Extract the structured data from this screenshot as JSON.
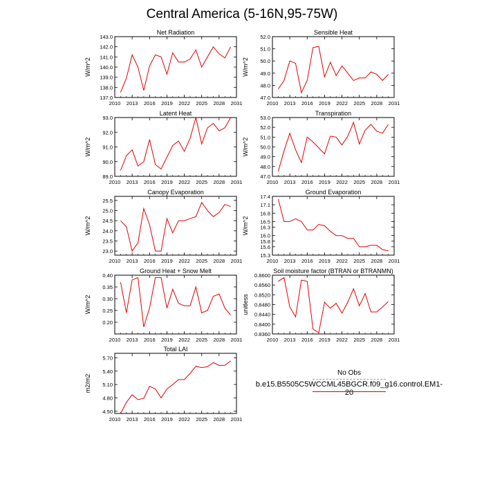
{
  "title": "Central America (5-16N,95-75W)",
  "legend": {
    "obs_label": "No Obs",
    "model_label": "b.e15.B5505C5WCCML45BGCR.f09_g16.control.EM1-20",
    "obs_color": "#9999aa",
    "model_color": "#e00000"
  },
  "chart_data": [
    {
      "type": "line",
      "title": "Net Radiation",
      "ylabel": "W/m^2",
      "xlim": [
        2010,
        2031
      ],
      "ylim": [
        137.0,
        143.0
      ],
      "x_ticks": [
        "2010",
        "2013",
        "2016",
        "2019",
        "2022",
        "2025",
        "2028",
        "2031"
      ],
      "y_ticks": [
        "137.0",
        "138.0",
        "139.0",
        "140.0",
        "141.0",
        "142.0",
        "143.0"
      ],
      "x": [
        2011,
        2012,
        2013,
        2014,
        2015,
        2016,
        2017,
        2018,
        2019,
        2020,
        2021,
        2022,
        2023,
        2024,
        2025,
        2026,
        2027,
        2028,
        2029,
        2030
      ],
      "values": [
        137.5,
        138.9,
        141.2,
        140.0,
        137.7,
        140.1,
        141.2,
        141.0,
        139.3,
        141.4,
        140.5,
        140.5,
        140.8,
        141.7,
        140.0,
        141.0,
        142.0,
        141.3,
        140.9,
        142.0
      ]
    },
    {
      "type": "line",
      "title": "Sensible Heat",
      "ylabel": "W/m^2",
      "xlim": [
        2010,
        2031
      ],
      "ylim": [
        47.0,
        52.0
      ],
      "x_ticks": [
        "2010",
        "2013",
        "2016",
        "2019",
        "2022",
        "2025",
        "2028",
        "2031"
      ],
      "y_ticks": [
        "47.0",
        "48.0",
        "49.0",
        "50.0",
        "51.0",
        "52.0"
      ],
      "x": [
        2011,
        2012,
        2013,
        2014,
        2015,
        2016,
        2017,
        2018,
        2019,
        2020,
        2021,
        2022,
        2023,
        2024,
        2025,
        2026,
        2027,
        2028,
        2029,
        2030
      ],
      "values": [
        47.7,
        48.4,
        50.0,
        49.8,
        47.4,
        48.4,
        51.1,
        51.2,
        48.7,
        49.9,
        48.8,
        49.6,
        49.0,
        48.4,
        48.6,
        48.6,
        49.1,
        48.9,
        48.4,
        48.9
      ]
    },
    {
      "type": "line",
      "title": "Latent Heat",
      "ylabel": "W/m^2",
      "xlim": [
        2010,
        2031
      ],
      "ylim": [
        89.0,
        93.0
      ],
      "x_ticks": [
        "2010",
        "2013",
        "2016",
        "2019",
        "2022",
        "2025",
        "2028",
        "2031"
      ],
      "y_ticks": [
        "89.0",
        "90.0",
        "91.0",
        "92.0",
        "93.0"
      ],
      "x": [
        2011,
        2012,
        2013,
        2014,
        2015,
        2016,
        2017,
        2018,
        2019,
        2020,
        2021,
        2022,
        2023,
        2024,
        2025,
        2026,
        2027,
        2028,
        2029,
        2030
      ],
      "values": [
        89.4,
        90.4,
        90.8,
        89.7,
        90.0,
        91.5,
        89.8,
        89.5,
        90.3,
        91.1,
        91.4,
        90.7,
        91.6,
        93.0,
        91.2,
        92.3,
        92.6,
        92.1,
        92.3,
        93.0
      ]
    },
    {
      "type": "line",
      "title": "Transpiration",
      "ylabel": "W/m^2",
      "xlim": [
        2010,
        2031
      ],
      "ylim": [
        47.0,
        53.0
      ],
      "x_ticks": [
        "2010",
        "2013",
        "2016",
        "2019",
        "2022",
        "2025",
        "2028",
        "2031"
      ],
      "y_ticks": [
        "47.0",
        "48.0",
        "49.0",
        "50.0",
        "51.0",
        "52.0",
        "53.0"
      ],
      "x": [
        2011,
        2012,
        2013,
        2014,
        2015,
        2016,
        2017,
        2018,
        2019,
        2020,
        2021,
        2022,
        2023,
        2024,
        2025,
        2026,
        2027,
        2028,
        2029,
        2030
      ],
      "values": [
        47.5,
        49.6,
        51.4,
        49.7,
        48.4,
        51.0,
        50.5,
        49.9,
        49.3,
        51.1,
        51.0,
        50.2,
        51.1,
        52.5,
        50.3,
        51.7,
        52.3,
        51.6,
        51.4,
        52.3
      ]
    },
    {
      "type": "line",
      "title": "Canopy Evaporation",
      "ylabel": "W/m^2",
      "xlim": [
        2010,
        2031
      ],
      "ylim": [
        22.8,
        25.7
      ],
      "x_ticks": [
        "2010",
        "2013",
        "2016",
        "2019",
        "2022",
        "2025",
        "2028",
        "2031"
      ],
      "y_ticks": [
        "23.0",
        "23.5",
        "24.0",
        "24.5",
        "25.0",
        "25.5"
      ],
      "x": [
        2011,
        2012,
        2013,
        2014,
        2015,
        2016,
        2017,
        2018,
        2019,
        2020,
        2021,
        2022,
        2023,
        2024,
        2025,
        2026,
        2027,
        2028,
        2029,
        2030
      ],
      "values": [
        24.5,
        24.2,
        23.0,
        23.4,
        25.1,
        24.3,
        23.0,
        23.0,
        24.6,
        23.9,
        24.5,
        24.5,
        24.6,
        24.7,
        25.4,
        25.0,
        24.7,
        24.9,
        25.3,
        25.2
      ]
    },
    {
      "type": "line",
      "title": "Ground Evaporation",
      "ylabel": "W/m^2",
      "xlim": [
        2010,
        2031
      ],
      "ylim": [
        15.3,
        17.4
      ],
      "x_ticks": [
        "2010",
        "2013",
        "2016",
        "2019",
        "2022",
        "2025",
        "2028",
        "2031"
      ],
      "y_ticks": [
        "15.3",
        "15.6",
        "15.8",
        "16.0",
        "16.3",
        "16.5",
        "16.8",
        "17.1",
        "17.4"
      ],
      "x": [
        2011,
        2012,
        2013,
        2014,
        2015,
        2016,
        2017,
        2018,
        2019,
        2020,
        2021,
        2022,
        2023,
        2024,
        2025,
        2026,
        2027,
        2028,
        2029,
        2030
      ],
      "values": [
        17.3,
        16.5,
        16.5,
        16.6,
        16.5,
        16.2,
        16.2,
        16.4,
        16.35,
        16.15,
        16.0,
        16.0,
        15.9,
        15.9,
        15.6,
        15.6,
        15.65,
        15.65,
        15.5,
        15.45
      ]
    },
    {
      "type": "line",
      "title": "Ground Heat + Snow Melt",
      "ylabel": "W/m^2",
      "xlim": [
        2010,
        2031
      ],
      "ylim": [
        0.15,
        0.4
      ],
      "x_ticks": [
        "2010",
        "2013",
        "2016",
        "2019",
        "2022",
        "2025",
        "2028",
        "2031"
      ],
      "y_ticks": [
        "0.20",
        "0.25",
        "0.30",
        "0.35",
        "0.40"
      ],
      "x": [
        2011,
        2012,
        2013,
        2014,
        2015,
        2016,
        2017,
        2018,
        2019,
        2020,
        2021,
        2022,
        2023,
        2024,
        2025,
        2026,
        2027,
        2028,
        2029,
        2030
      ],
      "values": [
        0.37,
        0.24,
        0.38,
        0.39,
        0.18,
        0.26,
        0.39,
        0.39,
        0.26,
        0.34,
        0.28,
        0.27,
        0.27,
        0.35,
        0.24,
        0.25,
        0.31,
        0.32,
        0.26,
        0.23
      ]
    },
    {
      "type": "line",
      "title": "Soil moisture factor (BTRAN or BTRANMN)",
      "ylabel": "unitless",
      "xlim": [
        2010,
        2031
      ],
      "ylim": [
        0.836,
        0.86
      ],
      "x_ticks": [
        "2010",
        "2013",
        "2016",
        "2019",
        "2022",
        "2025",
        "2028",
        "2031"
      ],
      "y_ticks": [
        "0.8360",
        "0.8400",
        "0.8440",
        "0.8480",
        "0.8520",
        "0.8560",
        "0.8600"
      ],
      "x": [
        2011,
        2012,
        2013,
        2014,
        2015,
        2016,
        2017,
        2018,
        2019,
        2020,
        2021,
        2022,
        2023,
        2024,
        2025,
        2026,
        2027,
        2028,
        2029,
        2030
      ],
      "values": [
        0.8575,
        0.859,
        0.847,
        0.843,
        0.858,
        0.8575,
        0.838,
        0.8365,
        0.849,
        0.8465,
        0.8485,
        0.8445,
        0.849,
        0.8545,
        0.8475,
        0.8525,
        0.845,
        0.845,
        0.847,
        0.8492
      ]
    },
    {
      "type": "line",
      "title": "Total LAI",
      "ylabel": "m2/m2",
      "xlim": [
        2010,
        2031
      ],
      "ylim": [
        4.45,
        5.8
      ],
      "x_ticks": [
        "2010",
        "2013",
        "2016",
        "2019",
        "2022",
        "2025",
        "2028",
        "2031"
      ],
      "y_ticks": [
        "4.50",
        "4.80",
        "5.10",
        "5.40",
        "5.70"
      ],
      "x": [
        2011,
        2012,
        2013,
        2014,
        2015,
        2016,
        2017,
        2018,
        2019,
        2020,
        2021,
        2022,
        2023,
        2024,
        2025,
        2026,
        2027,
        2028,
        2029,
        2030
      ],
      "values": [
        4.45,
        4.7,
        4.87,
        4.76,
        4.79,
        5.06,
        5.0,
        4.8,
        5.0,
        5.1,
        5.21,
        5.21,
        5.35,
        5.51,
        5.48,
        5.5,
        5.59,
        5.53,
        5.53,
        5.63
      ]
    }
  ]
}
